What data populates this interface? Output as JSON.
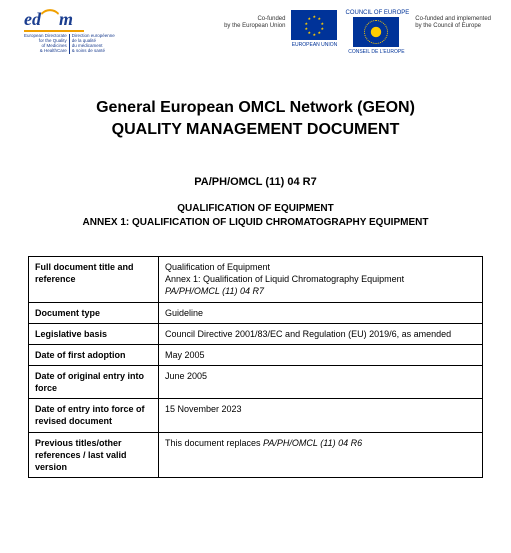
{
  "header": {
    "edqm_logo_text": "ed",
    "edqm_logo_text2": "m",
    "edqm_tiny_left": "European Directorate\nfor the Quality\nof Medicines\n& HealthCare",
    "edqm_tiny_right": "Direction européenne\nde la qualité\ndu médicament\n& soins de santé",
    "cofunded_eu": "Co-funded\nby the European Union",
    "eu_label": "EUROPEAN UNION",
    "coe_head": "COUNCIL OF EUROPE",
    "coe_label": "CONSEIL DE L'EUROPE",
    "coe_impl": "Co-funded and implemented\nby the Council of Europe"
  },
  "title": {
    "line1": "General European OMCL Network (GEON)",
    "line2": "QUALITY MANAGEMENT DOCUMENT"
  },
  "doc_ref": "PA/PH/OMCL (11) 04 R7",
  "sub_head": {
    "line1": "QUALIFICATION OF EQUIPMENT",
    "line2": "ANNEX 1: QUALIFICATION OF LIQUID CHROMATOGRAPHY EQUIPMENT"
  },
  "table": {
    "rows": [
      {
        "label": "Full document title and reference",
        "value_lines": [
          {
            "text": "Qualification of Equipment",
            "italic": false
          },
          {
            "text": "Annex 1: Qualification of Liquid Chromatography Equipment",
            "italic": false
          },
          {
            "text": "PA/PH/OMCL (11) 04 R7",
            "italic": true
          }
        ]
      },
      {
        "label": "Document type",
        "value_lines": [
          {
            "text": "Guideline",
            "italic": false
          }
        ]
      },
      {
        "label": "Legislative basis",
        "value_lines": [
          {
            "text": "Council Directive 2001/83/EC and Regulation (EU) 2019/6, as amended",
            "italic": false
          }
        ]
      },
      {
        "label": "Date of first adoption",
        "value_lines": [
          {
            "text": "May 2005",
            "italic": false
          }
        ]
      },
      {
        "label": "Date of original entry into force",
        "value_lines": [
          {
            "text": "June 2005",
            "italic": false
          }
        ]
      },
      {
        "label": "Date of entry into force of revised document",
        "value_lines": [
          {
            "text": "15 November 2023",
            "italic": false
          }
        ]
      },
      {
        "label": "Previous titles/other references / last valid version",
        "value_lines": [
          {
            "text": "This document replaces ",
            "italic": false,
            "inline": true
          },
          {
            "text": "PA/PH/OMCL (11) 04 R6",
            "italic": true,
            "inline": true
          }
        ]
      }
    ]
  },
  "colors": {
    "eu_blue": "#003399",
    "eu_gold": "#ffcc00",
    "edqm_blue": "#1a3d8f",
    "edqm_orange": "#f0a000"
  }
}
